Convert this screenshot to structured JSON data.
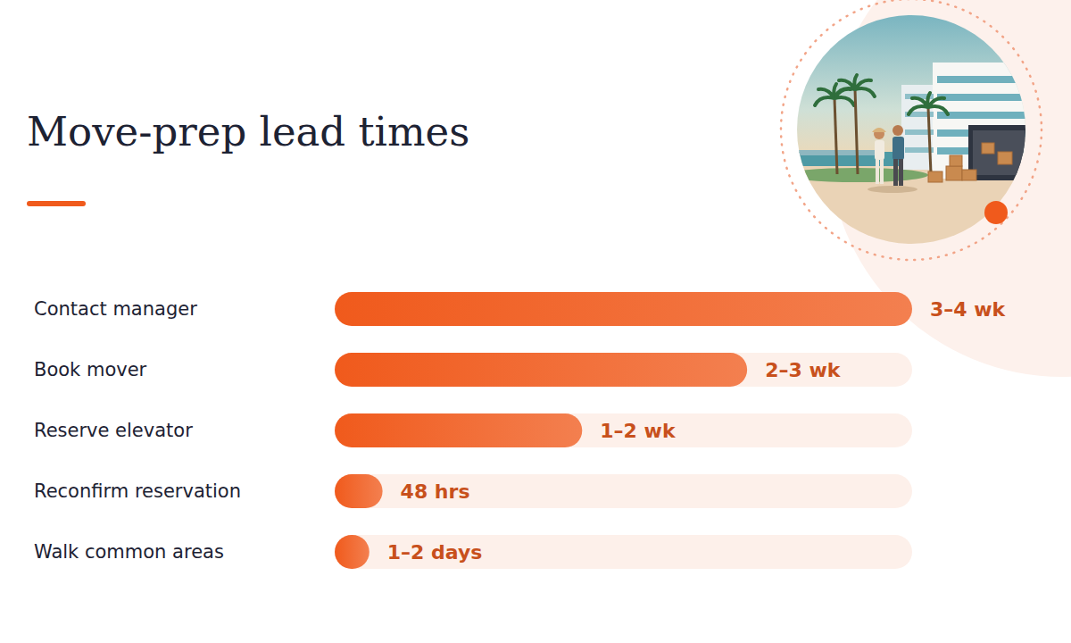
{
  "chart_data": {
    "type": "bar",
    "title": "Move-prep lead times",
    "orientation": "horizontal",
    "categories": [
      "Contact manager",
      "Book mover",
      "Reserve elevator",
      "Reconfirm reservation",
      "Walk common areas"
    ],
    "values": [
      3.5,
      2.5,
      1.5,
      0.29,
      0.21
    ],
    "value_labels": [
      "3–4 wk",
      "2–3 wk",
      "1–2 wk",
      "48 hrs",
      "1–2 days"
    ],
    "xlim": [
      0,
      3.5
    ],
    "color": "#f05a1c",
    "data_labels": true,
    "tick_labels": "y",
    "grid": false
  }
}
